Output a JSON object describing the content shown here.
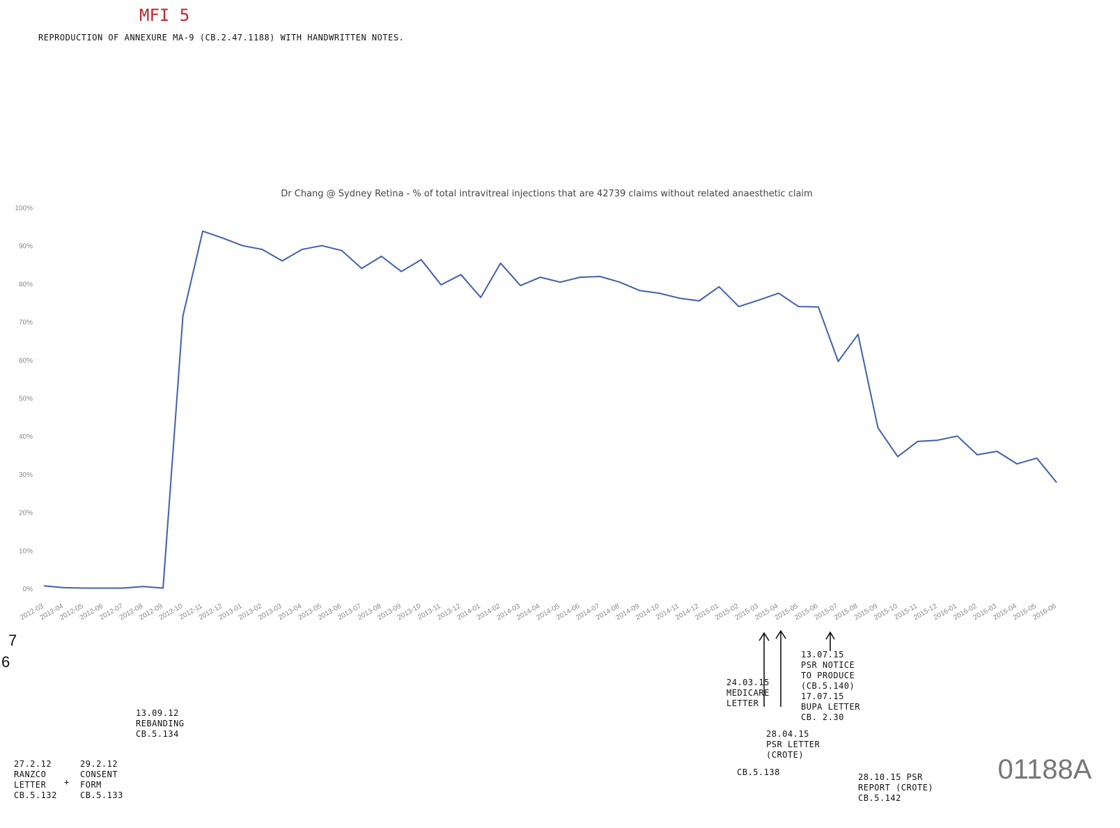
{
  "header": {
    "exhibit": "MFI 5",
    "title": "REPRODUCTION OF ANNEXURE MA-9 (CB.2.47.1188) WITH HANDWRITTEN NOTES."
  },
  "chart_data": {
    "type": "line",
    "title": "Dr Chang @ Sydney Retina - % of total intravitreal injections that are 42739 claims without related anaesthetic claim",
    "categories": [
      "2012-03",
      "2012-04",
      "2012-05",
      "2012-06",
      "2012-07",
      "2012-08",
      "2012-09",
      "2012-10",
      "2012-11",
      "2012-12",
      "2013-01",
      "2013-02",
      "2013-03",
      "2013-04",
      "2013-05",
      "2013-06",
      "2013-07",
      "2013-08",
      "2013-09",
      "2013-10",
      "2013-11",
      "2013-12",
      "2014-01",
      "2014-02",
      "2014-03",
      "2014-04",
      "2014-05",
      "2014-06",
      "2014-07",
      "2014-08",
      "2014-09",
      "2014-10",
      "2014-11",
      "2014-12",
      "2015-01",
      "2015-02",
      "2015-03",
      "2015-04",
      "2015-05",
      "2015-06",
      "2015-07",
      "2015-08",
      "2015-09",
      "2015-10",
      "2015-11",
      "2015-12",
      "2016-01",
      "2016-02",
      "2016-03",
      "2016-04",
      "2016-05",
      "2016-06"
    ],
    "values": [
      0.7,
      0.2,
      0.1,
      0.1,
      0.1,
      0.5,
      0.1,
      71.5,
      93.8,
      92,
      90,
      89,
      86,
      89,
      90,
      88.7,
      84,
      87.2,
      83.2,
      86.3,
      79.7,
      82.4,
      76.4,
      85.4,
      79.5,
      81.7,
      80.4,
      81.7,
      81.9,
      80.4,
      78.2,
      77.5,
      76.2,
      75.5,
      79.2,
      74,
      75.7,
      77.5,
      74,
      73.9,
      59.6,
      66.7,
      42.2,
      34.6,
      38.6,
      38.9,
      40,
      35.1,
      36,
      32.7,
      34.2,
      27.8
    ],
    "color": "#3f5fae",
    "ylim": [
      0,
      100
    ],
    "yticks": [
      {
        "value": 0,
        "label": "0%"
      },
      {
        "value": 10,
        "label": "10%"
      },
      {
        "value": 20,
        "label": "20%"
      },
      {
        "value": 30,
        "label": "30%"
      },
      {
        "value": 40,
        "label": "40%"
      },
      {
        "value": 50,
        "label": "50%"
      },
      {
        "value": 60,
        "label": "60%"
      },
      {
        "value": 70,
        "label": "70%"
      },
      {
        "value": 80,
        "label": "80%"
      },
      {
        "value": 90,
        "label": "90%"
      },
      {
        "value": 100,
        "label": "100%"
      }
    ],
    "grid": false
  },
  "notes": [
    {
      "lines": [
        "13.09.12",
        "REBANDING",
        "CB.5.134"
      ]
    },
    {
      "lines": [
        "27.2.12",
        "RANZCO",
        "LETTER",
        "CB.5.132"
      ]
    },
    {
      "lines": [
        "+"
      ]
    },
    {
      "lines": [
        "29.2.12",
        "CONSENT",
        "FORM",
        "CB.5.133"
      ]
    },
    {
      "lines": [
        "24.03.15",
        "MEDICARE",
        "LETTER"
      ]
    },
    {
      "lines": [
        "13.07.15",
        "PSR NOTICE",
        "TO PRODUCE",
        "(CB.5.140)"
      ]
    },
    {
      "lines": [
        "17.07.15",
        "BUPA LETTER",
        "CB. 2.30"
      ]
    },
    {
      "lines": [
        "28.04.15",
        "PSR LETTER",
        "(CROTE)"
      ]
    },
    {
      "lines": [
        "CB.5.138"
      ]
    },
    {
      "lines": [
        "28.10.15 PSR",
        "REPORT (CROTE)",
        "CB.5.142"
      ]
    }
  ],
  "margin_marks": [
    "7",
    "6"
  ],
  "page_number": "01188A"
}
